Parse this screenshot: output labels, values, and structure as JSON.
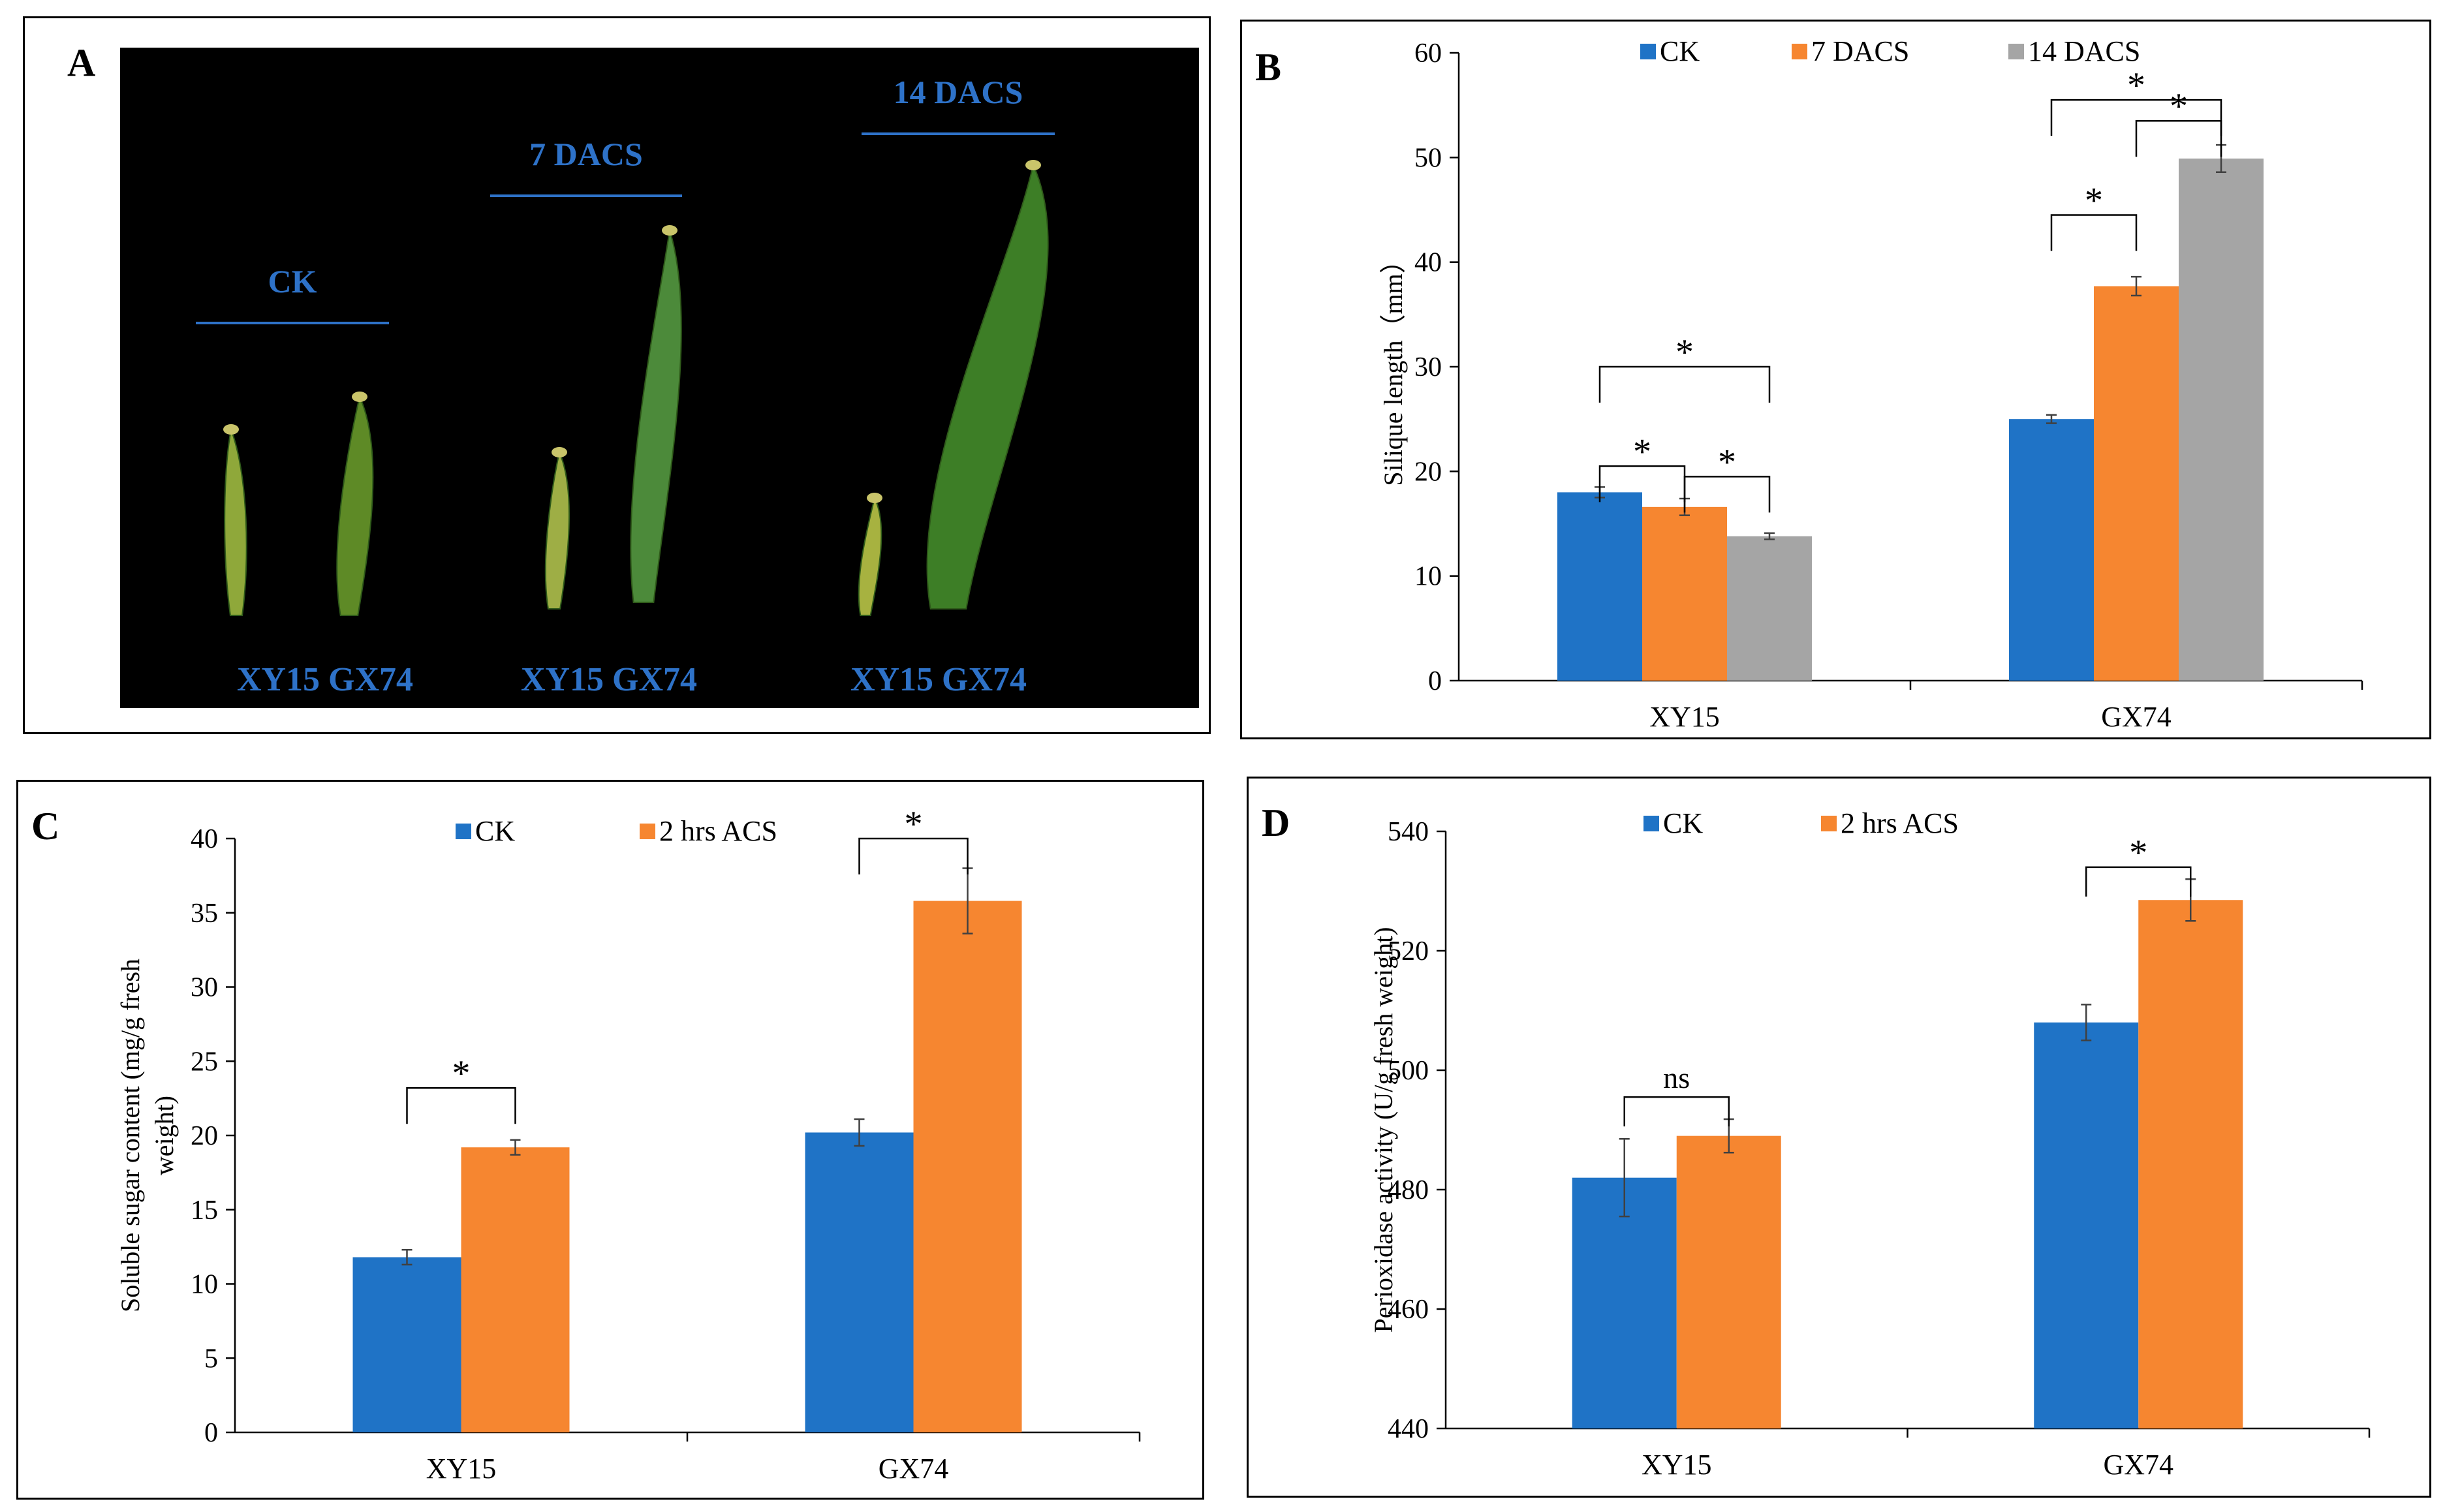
{
  "colors": {
    "ck": "#1F73C6",
    "dacs7": "#F68630",
    "dacs14": "#A5A5A5",
    "photo_label": "#2E72C8",
    "photo_bg": "#000000"
  },
  "panel_a": {
    "letter": "A",
    "groups": [
      {
        "label": "CK",
        "genotypes": "XY15  GX74"
      },
      {
        "label": "7 DACS",
        "genotypes": "XY15  GX74"
      },
      {
        "label": "14 DACS",
        "genotypes": "XY15  GX74"
      }
    ]
  },
  "chart_data": [
    {
      "panel": "B",
      "type": "bar",
      "categories": [
        "XY15",
        "GX74"
      ],
      "series": [
        {
          "name": "CK",
          "color": "#1F73C6",
          "values": [
            18.0,
            25.0
          ],
          "errors": [
            0.5,
            0.4
          ]
        },
        {
          "name": "7 DACS",
          "color": "#F68630",
          "values": [
            16.6,
            37.7
          ],
          "errors": [
            0.8,
            0.9
          ]
        },
        {
          "name": "14 DACS",
          "color": "#A5A5A5",
          "values": [
            13.8,
            49.9
          ],
          "errors": [
            0.3,
            1.3
          ]
        }
      ],
      "ylabel": "Silique  length（mm）",
      "ylim": [
        0,
        60
      ],
      "yticks": [
        0,
        10,
        20,
        30,
        40,
        50,
        60
      ],
      "annotations": [
        {
          "text": "*",
          "category": 0,
          "from": 0,
          "to": 1,
          "level": 20.5
        },
        {
          "text": "*",
          "category": 0,
          "from": 1,
          "to": 2,
          "level": 19.5
        },
        {
          "text": "*",
          "category": 0,
          "from": 0,
          "to": 2,
          "level": 30
        },
        {
          "text": "*",
          "category": 1,
          "from": 0,
          "to": 1,
          "level": 44.5
        },
        {
          "text": "*",
          "category": 1,
          "from": 1,
          "to": 2,
          "level": 53.5
        },
        {
          "text": "*",
          "category": 1,
          "from": 0,
          "to": 2,
          "level": 55.5
        }
      ]
    },
    {
      "panel": "C",
      "type": "bar",
      "categories": [
        "XY15",
        "GX74"
      ],
      "series": [
        {
          "name": "CK",
          "color": "#1F73C6",
          "values": [
            11.8,
            20.2
          ],
          "errors": [
            0.5,
            0.9
          ]
        },
        {
          "name": "2 hrs ACS",
          "color": "#F68630",
          "values": [
            19.2,
            35.8
          ],
          "errors": [
            0.5,
            2.2
          ]
        }
      ],
      "ylabel": "Soluble  sugar  content  (mg/g  fresh weight)",
      "ylim": [
        0,
        40
      ],
      "yticks": [
        0,
        5,
        10,
        15,
        20,
        25,
        30,
        35,
        40
      ],
      "annotations": [
        {
          "text": "*",
          "category": 0,
          "from": 0,
          "to": 1,
          "level": 23.2
        },
        {
          "text": "*",
          "category": 1,
          "from": 0,
          "to": 1,
          "level": 40
        }
      ]
    },
    {
      "panel": "D",
      "type": "bar",
      "categories": [
        "XY15",
        "GX74"
      ],
      "series": [
        {
          "name": "CK",
          "color": "#1F73C6",
          "values": [
            482,
            508
          ],
          "errors": [
            6.5,
            3.0
          ]
        },
        {
          "name": "2 hrs ACS",
          "color": "#F68630",
          "values": [
            489,
            528.5
          ],
          "errors": [
            2.8,
            3.5
          ]
        }
      ],
      "ylabel": "Perioxidase  activity  (U/g  fresh weight)",
      "ylim": [
        440,
        540
      ],
      "yticks": [
        440,
        460,
        480,
        500,
        520,
        540
      ],
      "annotations": [
        {
          "text": "ns",
          "category": 0,
          "from": 0,
          "to": 1,
          "level": 495.5
        },
        {
          "text": "*",
          "category": 1,
          "from": 0,
          "to": 1,
          "level": 534
        }
      ]
    }
  ]
}
